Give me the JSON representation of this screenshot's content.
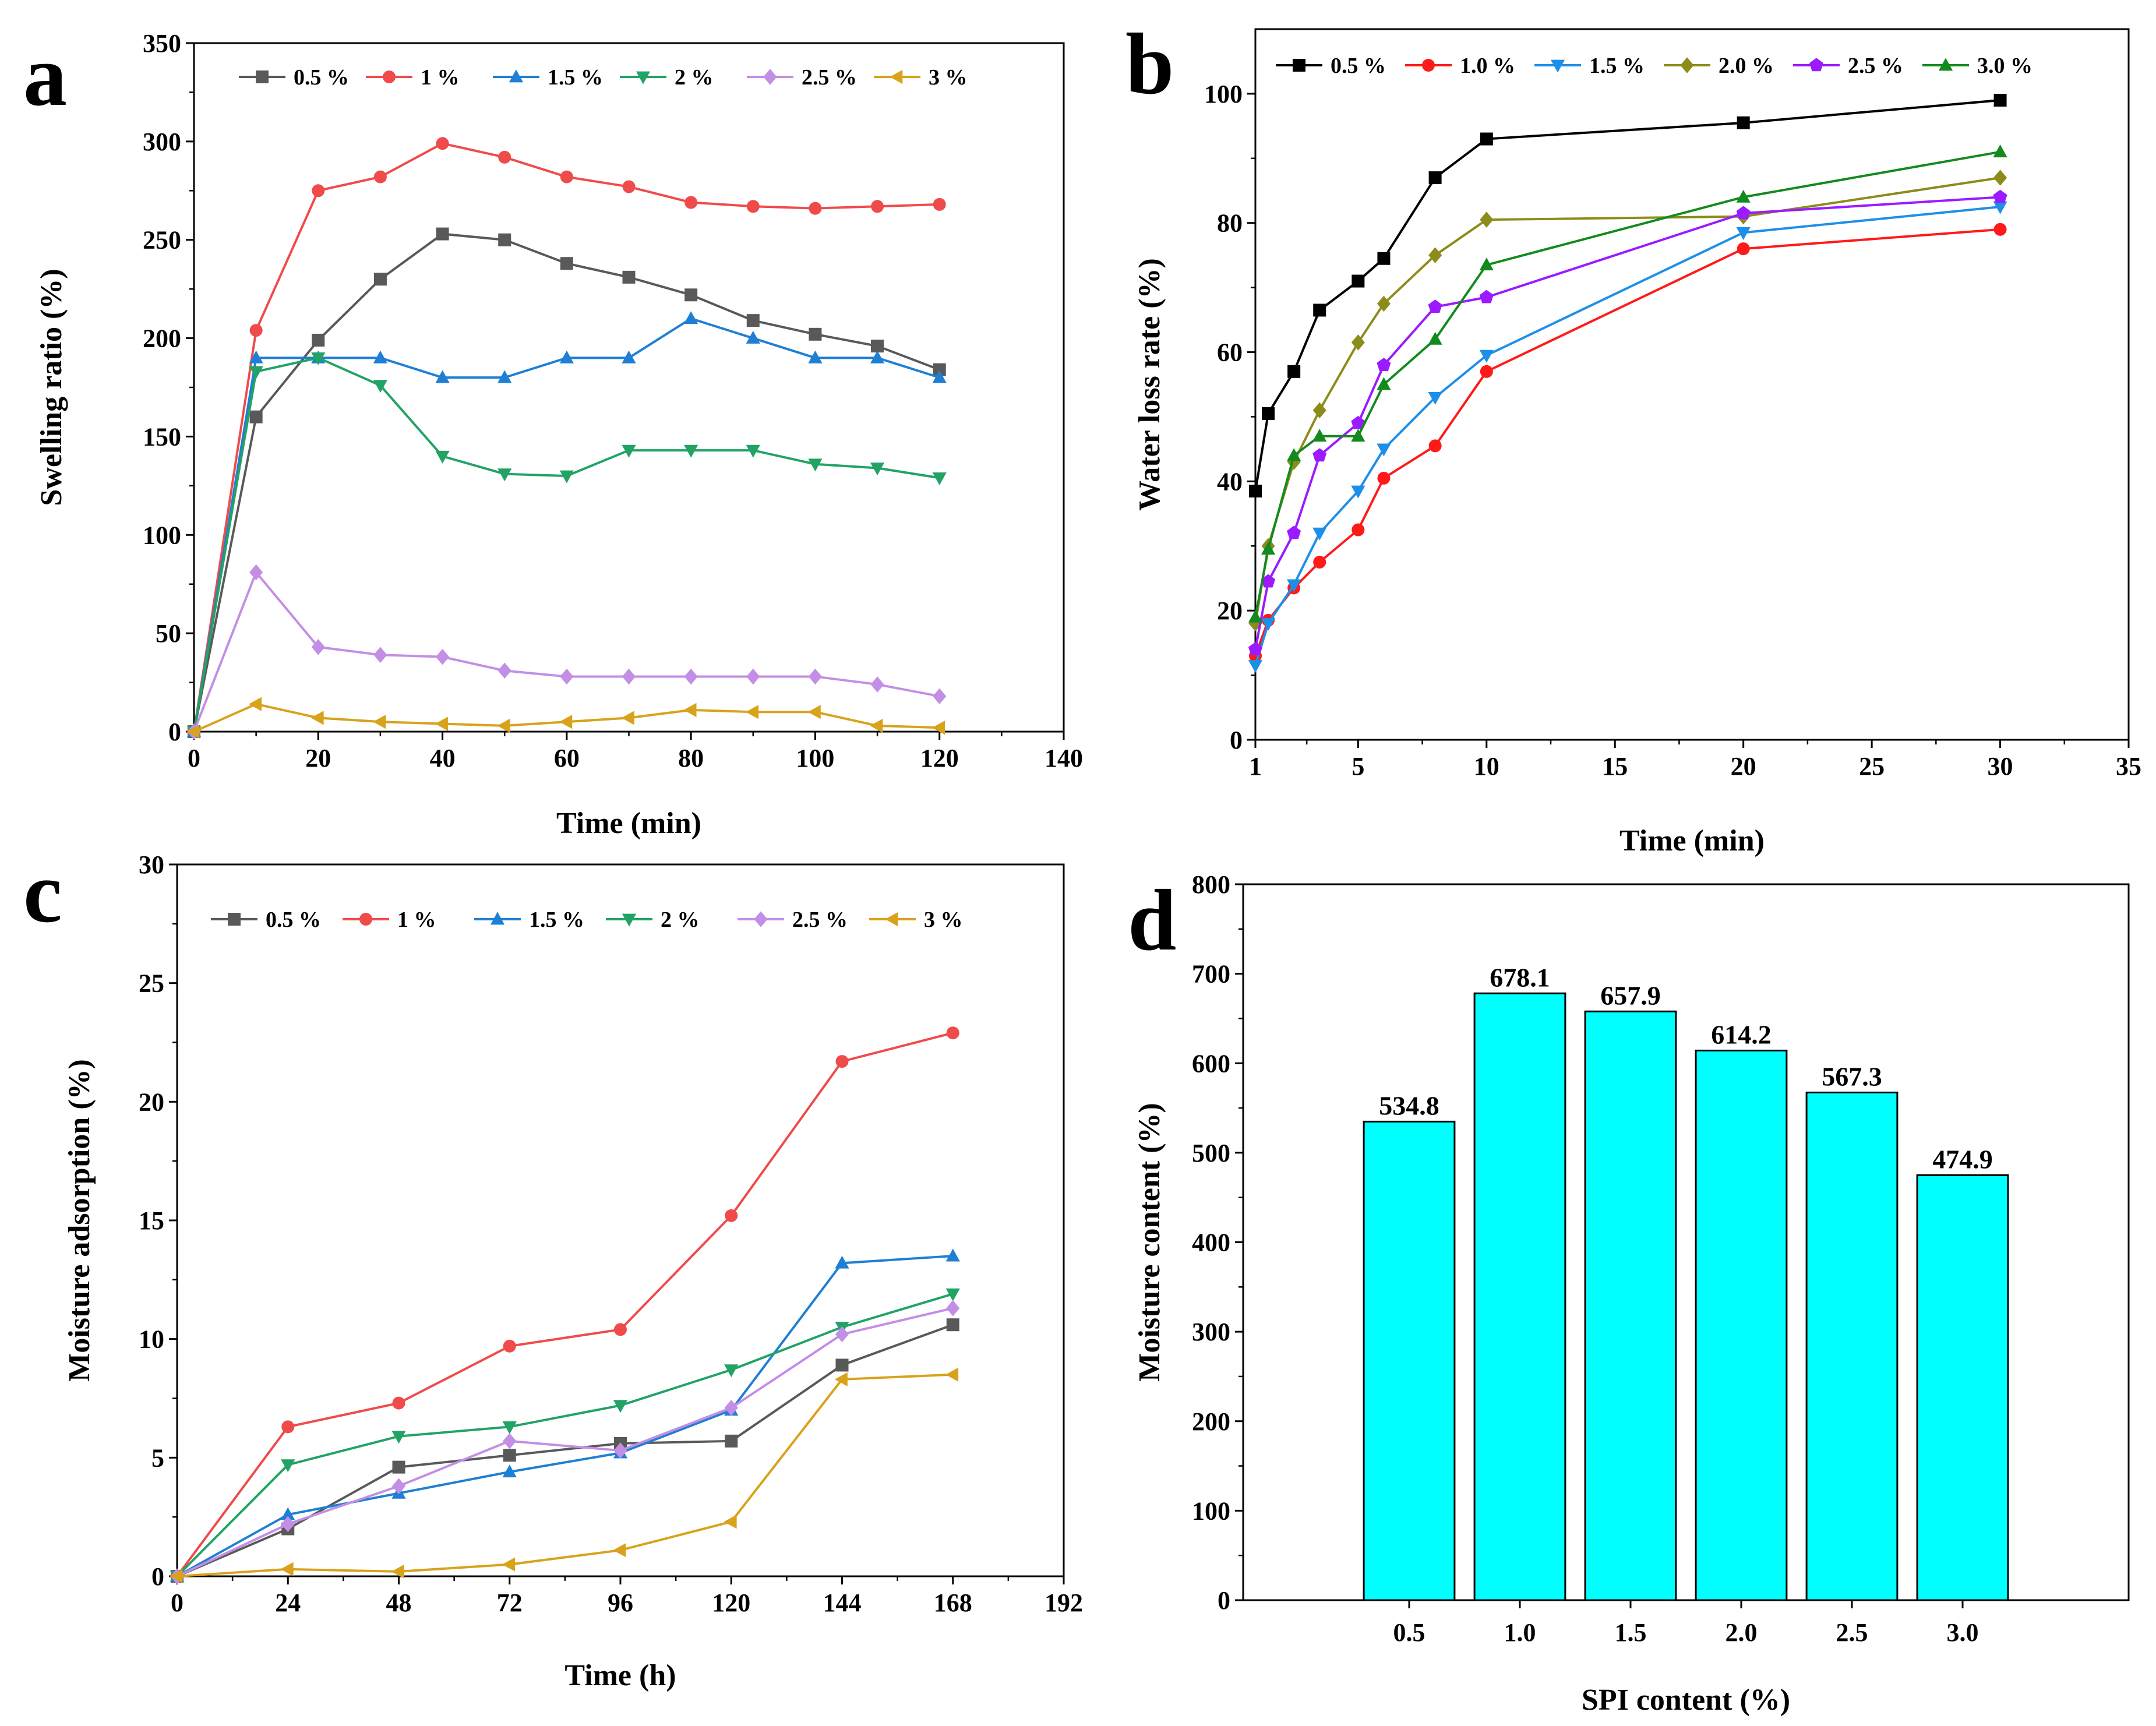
{
  "figure": {
    "panels": [
      "a",
      "b",
      "c",
      "d"
    ]
  },
  "chart_data": [
    {
      "panel": "a",
      "type": "line",
      "title": "",
      "xlabel": "Time (min)",
      "ylabel": "Swelling ratio (%)",
      "xlim": [
        0,
        140
      ],
      "ylim": [
        0,
        350
      ],
      "xticks": [
        0,
        20,
        40,
        60,
        80,
        100,
        120,
        140
      ],
      "yticks": [
        0,
        50,
        100,
        150,
        200,
        250,
        300,
        350
      ],
      "legend_position": "top",
      "x": [
        0,
        10,
        20,
        30,
        40,
        50,
        60,
        70,
        80,
        90,
        100,
        110,
        120
      ],
      "series": [
        {
          "name": "0.5 %",
          "color": "#595959",
          "marker": "square",
          "values": [
            0,
            160,
            199,
            230,
            253,
            250,
            238,
            231,
            222,
            209,
            202,
            196,
            184
          ]
        },
        {
          "name": "1 %",
          "color": "#f04b4b",
          "marker": "circle",
          "values": [
            0,
            204,
            275,
            282,
            299,
            292,
            282,
            277,
            269,
            267,
            266,
            267,
            268
          ]
        },
        {
          "name": "1.5 %",
          "color": "#1f7fd4",
          "marker": "triangle-up",
          "values": [
            0,
            190,
            190,
            190,
            180,
            180,
            190,
            190,
            210,
            200,
            190,
            190,
            180
          ]
        },
        {
          "name": "2 %",
          "color": "#22a366",
          "marker": "triangle-down",
          "values": [
            0,
            183,
            190,
            176,
            140,
            131,
            130,
            143,
            143,
            143,
            136,
            134,
            129
          ]
        },
        {
          "name": "2.5 %",
          "color": "#c38ee6",
          "marker": "diamond",
          "values": [
            0,
            81,
            43,
            39,
            38,
            31,
            28,
            28,
            28,
            28,
            28,
            24,
            18
          ]
        },
        {
          "name": "3 %",
          "color": "#d9a21b",
          "marker": "triangle-left",
          "values": [
            0,
            14,
            7,
            5,
            4,
            3,
            5,
            7,
            11,
            10,
            10,
            3,
            2
          ]
        }
      ]
    },
    {
      "panel": "b",
      "type": "line",
      "title": "",
      "xlabel": "Time (min)",
      "ylabel": "Water loss rate (%)",
      "xlim": [
        1,
        35
      ],
      "ylim": [
        0,
        110
      ],
      "xticks": [
        1,
        5,
        10,
        15,
        20,
        25,
        30,
        35
      ],
      "yticks": [
        0,
        20,
        40,
        60,
        80,
        100
      ],
      "legend_position": "top",
      "x": [
        1,
        1.5,
        2.5,
        3.5,
        5,
        6,
        8,
        10,
        20,
        30
      ],
      "series": [
        {
          "name": "0.5 %",
          "color": "#000000",
          "marker": "square",
          "values": [
            38.5,
            50.5,
            57,
            66.5,
            71,
            74.5,
            87,
            93,
            95.5,
            99
          ]
        },
        {
          "name": "1.0 %",
          "color": "#ff1a1a",
          "marker": "circle",
          "values": [
            13,
            18.5,
            23.5,
            27.5,
            32.5,
            40.5,
            45.5,
            57,
            76,
            79
          ]
        },
        {
          "name": "1.5 %",
          "color": "#1e8fe8",
          "marker": "triangle-down",
          "values": [
            11.5,
            18,
            24,
            32,
            38.5,
            45,
            53,
            59.5,
            78.5,
            82.5
          ]
        },
        {
          "name": "2.0 %",
          "color": "#8c8c1a",
          "marker": "diamond",
          "values": [
            18,
            30,
            43,
            51,
            61.5,
            67.5,
            75,
            80.5,
            81,
            87
          ]
        },
        {
          "name": "2.5 %",
          "color": "#9b1aff",
          "marker": "pentagon",
          "values": [
            14,
            24.5,
            32,
            44,
            49,
            58,
            67,
            68.5,
            81.5,
            84
          ]
        },
        {
          "name": "3.0 %",
          "color": "#138a1e",
          "marker": "triangle-up",
          "values": [
            19,
            29.5,
            44,
            47,
            47,
            55,
            62,
            73.5,
            84,
            91
          ]
        }
      ]
    },
    {
      "panel": "c",
      "type": "line",
      "title": "",
      "xlabel": "Time (h)",
      "ylabel": "Moisture adsorption (%)",
      "xlim": [
        0,
        192
      ],
      "ylim": [
        0,
        30
      ],
      "xticks": [
        0,
        24,
        48,
        72,
        96,
        120,
        144,
        168,
        192
      ],
      "yticks": [
        0,
        5,
        10,
        15,
        20,
        25,
        30
      ],
      "legend_position": "top",
      "x": [
        0,
        24,
        48,
        72,
        96,
        120,
        144,
        168
      ],
      "series": [
        {
          "name": "0.5 %",
          "color": "#595959",
          "marker": "square",
          "values": [
            0,
            2.0,
            4.6,
            5.1,
            5.6,
            5.7,
            8.9,
            10.6
          ]
        },
        {
          "name": "1 %",
          "color": "#f04b4b",
          "marker": "circle",
          "values": [
            0,
            6.3,
            7.3,
            9.7,
            10.4,
            15.2,
            21.7,
            22.9
          ]
        },
        {
          "name": "1.5 %",
          "color": "#1f7fd4",
          "marker": "triangle-up",
          "values": [
            0,
            2.6,
            3.5,
            4.4,
            5.2,
            7.0,
            13.2,
            13.5
          ]
        },
        {
          "name": "2 %",
          "color": "#22a366",
          "marker": "triangle-down",
          "values": [
            0,
            4.7,
            5.9,
            6.3,
            7.2,
            8.7,
            10.5,
            11.9
          ]
        },
        {
          "name": "2.5 %",
          "color": "#c38ee6",
          "marker": "diamond",
          "values": [
            0,
            2.2,
            3.8,
            5.7,
            5.3,
            7.1,
            10.2,
            11.3
          ]
        },
        {
          "name": "3 %",
          "color": "#d9a21b",
          "marker": "triangle-left",
          "values": [
            0,
            0.3,
            0.2,
            0.5,
            1.1,
            2.3,
            8.3,
            8.5
          ]
        }
      ]
    },
    {
      "panel": "d",
      "type": "bar",
      "title": "",
      "xlabel": "SPI content (%)",
      "ylabel": "Moisture content (%)",
      "ylim": [
        0,
        800
      ],
      "yticks": [
        0,
        100,
        200,
        300,
        400,
        500,
        600,
        700,
        800
      ],
      "categories": [
        "0.5",
        "1.0",
        "1.5",
        "2.0",
        "2.5",
        "3.0"
      ],
      "values": [
        534.8,
        678.1,
        657.9,
        614.2,
        567.3,
        474.9
      ],
      "labels": [
        "534.8",
        "678.1",
        "657.9",
        "614.2",
        "567.3",
        "474.9"
      ],
      "color": "#00ffff"
    }
  ]
}
